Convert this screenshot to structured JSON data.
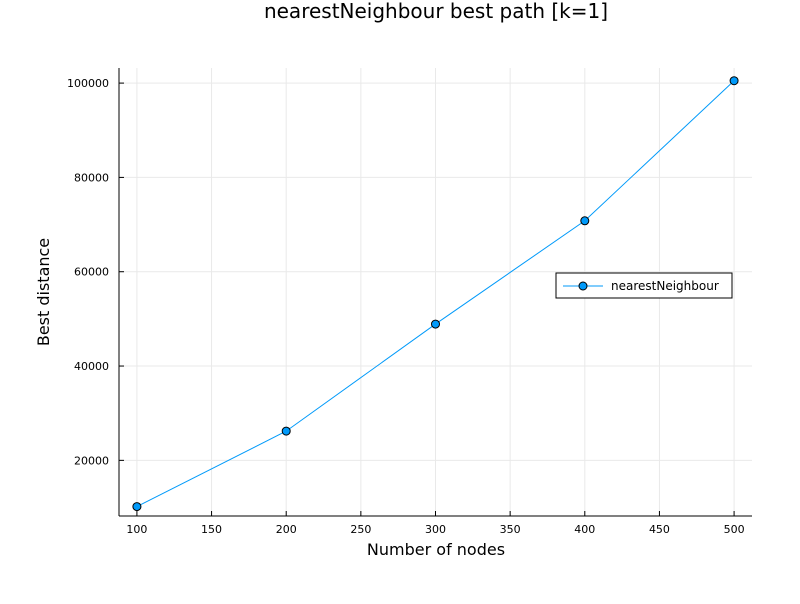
{
  "chart_data": {
    "type": "line",
    "title": "nearestNeighbour best path [k=1]",
    "xlabel": "Number of nodes",
    "ylabel": "Best distance",
    "xlim": [
      88,
      512
    ],
    "ylim": [
      8200,
      103200
    ],
    "x_ticks": [
      100,
      150,
      200,
      250,
      300,
      350,
      400,
      450,
      500
    ],
    "y_ticks": [
      20000,
      40000,
      60000,
      80000,
      100000
    ],
    "grid": true,
    "legend_position": "right",
    "series": [
      {
        "name": "nearestNeighbour",
        "color": "#009AFA",
        "marker": "circle",
        "x": [
          100,
          200,
          300,
          400,
          500
        ],
        "y": [
          10200,
          26200,
          48900,
          70800,
          100500
        ]
      }
    ]
  }
}
